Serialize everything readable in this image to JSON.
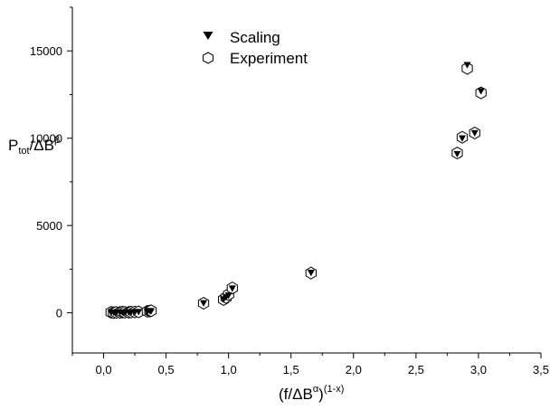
{
  "chart_data": {
    "type": "scatter",
    "xlabel": "(f/ΔB^α)^(1-x)",
    "ylabel": "P_tot/ΔB^β",
    "xlim": [
      -0.25,
      3.5
    ],
    "ylim": [
      -2300,
      17500
    ],
    "x_ticks": [
      0.0,
      0.5,
      1.0,
      1.5,
      2.0,
      2.5,
      3.0,
      3.5
    ],
    "x_tick_labels": [
      "0,0",
      "0,5",
      "1,0",
      "1,5",
      "2,0",
      "2,5",
      "3,0",
      "3,5"
    ],
    "y_ticks": [
      0,
      5000,
      10000,
      15000
    ],
    "y_tick_labels": [
      "0",
      "5000",
      "10000",
      "15000"
    ],
    "grid": false,
    "legend_position": "top-center",
    "series": [
      {
        "name": "Scaling",
        "marker": "filled-down-triangle",
        "x": [
          0.06,
          0.08,
          0.1,
          0.13,
          0.15,
          0.17,
          0.2,
          0.22,
          0.25,
          0.28,
          0.35,
          0.37,
          0.38,
          0.8,
          0.96,
          0.98,
          1.0,
          1.03,
          1.66,
          2.83,
          2.87,
          2.91,
          2.97,
          3.02
        ],
        "y": [
          20,
          30,
          15,
          25,
          30,
          20,
          40,
          35,
          45,
          60,
          80,
          110,
          95,
          560,
          780,
          900,
          1000,
          1400,
          2300,
          9100,
          10000,
          14200,
          10300,
          12700
        ]
      },
      {
        "name": "Experiment",
        "marker": "open-hexagon",
        "x": [
          0.06,
          0.08,
          0.1,
          0.13,
          0.15,
          0.17,
          0.2,
          0.22,
          0.25,
          0.28,
          0.35,
          0.37,
          0.38,
          0.8,
          0.96,
          0.98,
          1.0,
          1.03,
          1.66,
          2.83,
          2.87,
          2.91,
          2.97,
          3.02
        ],
        "y": [
          30,
          10,
          25,
          20,
          40,
          30,
          30,
          45,
          50,
          55,
          90,
          100,
          120,
          550,
          760,
          880,
          1050,
          1420,
          2280,
          9150,
          10050,
          14000,
          10300,
          12600
        ]
      }
    ],
    "legend": {
      "scaling_label": "Scaling",
      "experiment_label": "Experiment"
    },
    "axis_titles": {
      "x_main": "(f/ΔB",
      "x_sup1": "α",
      "x_close": ")",
      "x_sup2": "(1-x)",
      "y_main": "P",
      "y_sub": "tot",
      "y_mid": "/ΔB",
      "y_sup": "β"
    },
    "colors": {
      "axis": "#000000",
      "marker": "#000000",
      "background": "#ffffff"
    }
  }
}
